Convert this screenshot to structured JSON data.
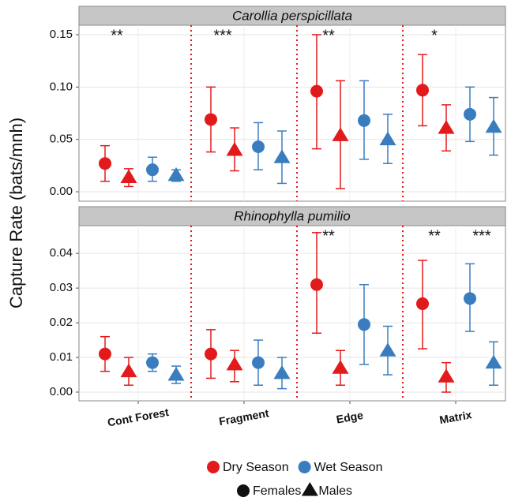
{
  "chart_data": {
    "type": "pointrange",
    "y_label": "Capture Rate (bats/mnh)",
    "categories": [
      "Cont Forest",
      "Fragment",
      "Edge",
      "Matrix"
    ],
    "seasons": [
      {
        "name": "Dry Season",
        "color": "#e31a1c"
      },
      {
        "name": "Wet Season",
        "color": "#3a7dbf"
      }
    ],
    "sexes": [
      {
        "name": "Females",
        "shape": "circle"
      },
      {
        "name": "Males",
        "shape": "triangle"
      }
    ],
    "grid": true,
    "panels": [
      {
        "title": "Carollia perspicillata",
        "ylim": [
          -0.009,
          0.159
        ],
        "yticks": [
          {
            "value": 0,
            "label": "0.00"
          },
          0.05,
          {
            "value": 0.1,
            "label": "0.10"
          },
          0.15
        ],
        "significance": [
          [
            "**",
            "***",
            "**",
            "*"
          ],
          [
            null,
            null,
            null,
            null
          ]
        ],
        "groups": [
          {
            "season": 0,
            "sex": 0,
            "values": [
              0.027,
              0.069,
              0.096,
              0.097
            ],
            "lower": [
              0.01,
              0.038,
              0.041,
              0.063
            ],
            "upper": [
              0.044,
              0.1,
              0.15,
              0.131
            ]
          },
          {
            "season": 0,
            "sex": 1,
            "values": [
              0.014,
              0.04,
              0.054,
              0.061
            ],
            "lower": [
              0.005,
              0.02,
              0.003,
              0.039
            ],
            "upper": [
              0.022,
              0.061,
              0.106,
              0.083
            ]
          },
          {
            "season": 1,
            "sex": 0,
            "values": [
              0.021,
              0.043,
              0.068,
              0.074
            ],
            "lower": [
              0.01,
              0.021,
              0.031,
              0.048
            ],
            "upper": [
              0.033,
              0.066,
              0.106,
              0.1
            ]
          },
          {
            "season": 1,
            "sex": 1,
            "values": [
              0.016,
              0.033,
              0.05,
              0.062
            ],
            "lower": [
              0.01,
              0.008,
              0.027,
              0.035
            ],
            "upper": [
              0.021,
              0.058,
              0.074,
              0.09
            ]
          }
        ]
      },
      {
        "title": "Rhinophylla pumilio",
        "ylim": [
          -0.0025,
          0.048
        ],
        "yticks": [
          {
            "value": 0,
            "label": "0.00"
          },
          0.01,
          0.02,
          0.03,
          0.04
        ],
        "significance": [
          [
            null,
            null,
            "**",
            "**"
          ],
          [
            null,
            null,
            null,
            "***"
          ]
        ],
        "groups": [
          {
            "season": 0,
            "sex": 0,
            "values": [
              0.011,
              0.011,
              0.031,
              0.0255
            ],
            "lower": [
              0.006,
              0.004,
              0.017,
              0.0125
            ],
            "upper": [
              0.016,
              0.018,
              0.046,
              0.038
            ]
          },
          {
            "season": 0,
            "sex": 1,
            "values": [
              0.006,
              0.008,
              0.007,
              0.0045
            ],
            "lower": [
              0.002,
              0.003,
              0.002,
              0.0
            ],
            "upper": [
              0.01,
              0.012,
              0.012,
              0.0085
            ]
          },
          {
            "season": 1,
            "sex": 0,
            "values": [
              0.0085,
              0.0085,
              0.0195,
              0.027
            ],
            "lower": [
              0.006,
              0.002,
              0.008,
              0.0175
            ],
            "upper": [
              0.011,
              0.015,
              0.031,
              0.037
            ]
          },
          {
            "season": 1,
            "sex": 1,
            "values": [
              0.005,
              0.0055,
              0.012,
              0.0085
            ],
            "lower": [
              0.0025,
              0.001,
              0.005,
              0.002
            ],
            "upper": [
              0.0075,
              0.01,
              0.019,
              0.0145
            ]
          }
        ]
      }
    ]
  }
}
